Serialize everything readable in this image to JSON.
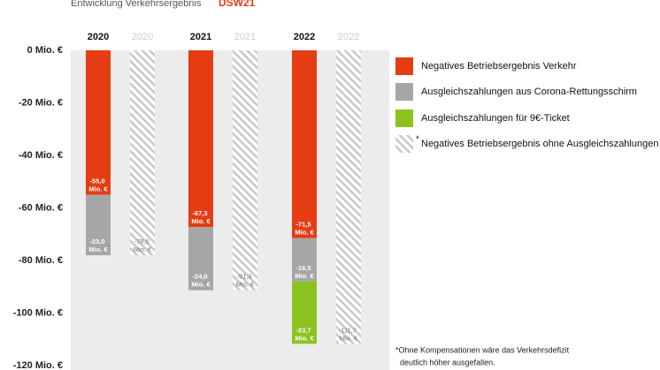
{
  "chart_data": {
    "type": "stacked_bar",
    "title": "Entwicklung Verkehrsergebnis",
    "logo": "DSW21",
    "categories": [
      "2020",
      "2021",
      "2022"
    ],
    "ylim": [
      -120,
      0
    ],
    "yticks": [
      {
        "value": 0,
        "label": "0 Mio. €"
      },
      {
        "value": -20,
        "label": "-20 Mio. €"
      },
      {
        "value": -40,
        "label": "-40 Mio. €"
      },
      {
        "value": -60,
        "label": "-60 Mio. €"
      },
      {
        "value": -80,
        "label": "-80 Mio. €"
      },
      {
        "value": -100,
        "label": "-100 Mio. €"
      },
      {
        "value": -120,
        "label": "-120 Mio. €"
      }
    ],
    "series": [
      {
        "name": "Negatives Betriebsergebnis Verkehr",
        "color": "#e63c14",
        "values": [
          -55.0,
          -67.3,
          -71.5
        ],
        "value_labels": [
          "-55,0 Mio. €",
          "-67,3 Mio. €",
          "-71,5 Mio. €"
        ]
      },
      {
        "name": "Ausgleichszahlungen aus Corona-Rettungsschirm",
        "color": "#a6a6a6",
        "values": [
          -23.0,
          -24.0,
          -16.5
        ],
        "value_labels": [
          "-23,0 Mio. €",
          "-24,0 Mio. €",
          "-16,5 Mio. €"
        ]
      },
      {
        "name": "Ausgleichszahlungen für 9€-Ticket",
        "color": "#8cc21e",
        "values": [
          null,
          null,
          -23.7
        ],
        "value_labels": [
          null,
          null,
          "-23,7 Mio. €"
        ]
      }
    ],
    "hatched_series": {
      "name": "Negatives  Betriebsergebnis ohne Ausgleichszahlungen",
      "marker": "*",
      "color": "#c8c8c8",
      "values": [
        -78.0,
        -91.3,
        -111.7
      ],
      "value_labels": [
        "-78,0 Mio. €",
        "-91,3 Mio. €",
        "-111,7 Mio. €"
      ]
    },
    "footnote": [
      "*Ohne Kompensationen wäre das Verkehrsdefizit",
      "deutlich höher ausgefallen."
    ]
  }
}
